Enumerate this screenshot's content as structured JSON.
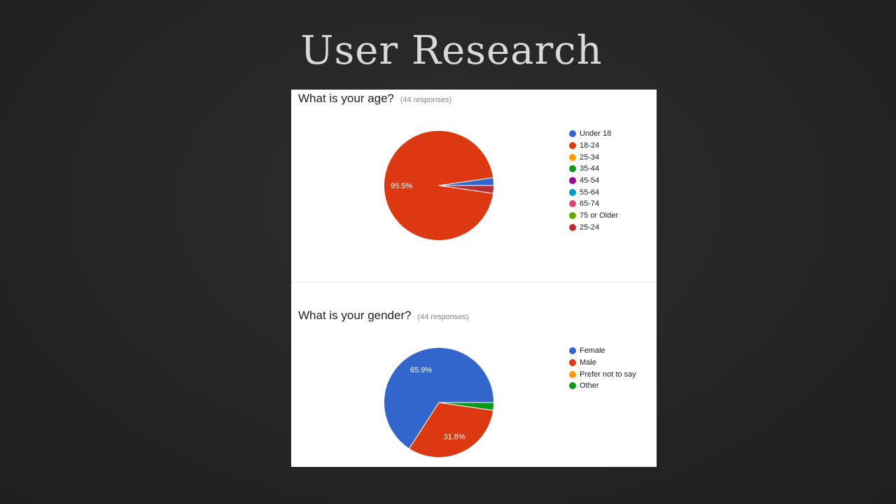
{
  "slide": {
    "title": "User Research"
  },
  "chart_data": [
    {
      "type": "pie",
      "title": "What is your age?",
      "subtitle": "(44 responses)",
      "legend_position": "right",
      "slices": [
        {
          "label": "Under 18",
          "value": 2.3,
          "color": "#3366cc"
        },
        {
          "label": "18-24",
          "value": 95.5,
          "color": "#dc3912",
          "data_label": "95.5%"
        },
        {
          "label": "25-34",
          "value": 0,
          "color": "#ff9900"
        },
        {
          "label": "35-44",
          "value": 0,
          "color": "#109618"
        },
        {
          "label": "45-54",
          "value": 0,
          "color": "#990099"
        },
        {
          "label": "55-64",
          "value": 0,
          "color": "#0099c6"
        },
        {
          "label": "65-74",
          "value": 0,
          "color": "#dd4477"
        },
        {
          "label": "75 or Older",
          "value": 0,
          "color": "#66aa00"
        },
        {
          "label": "25-24",
          "value": 2.3,
          "color": "#b82e2e"
        }
      ]
    },
    {
      "type": "pie",
      "title": "What is your gender?",
      "subtitle": "(44 responses)",
      "legend_position": "right",
      "slices": [
        {
          "label": "Female",
          "value": 65.9,
          "color": "#3366cc",
          "data_label": "65.9%"
        },
        {
          "label": "Male",
          "value": 31.8,
          "color": "#dc3912",
          "data_label": "31.8%"
        },
        {
          "label": "Prefer not to say",
          "value": 0,
          "color": "#ff9900"
        },
        {
          "label": "Other",
          "value": 2.3,
          "color": "#109618"
        }
      ]
    }
  ]
}
